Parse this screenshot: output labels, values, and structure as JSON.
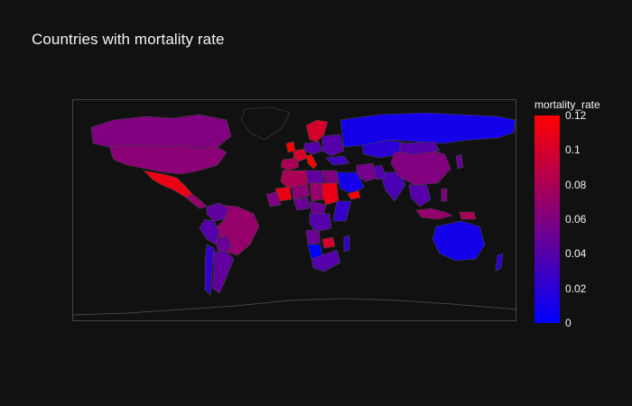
{
  "title": "Countries with mortality rate",
  "colorbar": {
    "title": "mortality_rate",
    "min": 0,
    "max": 0.12,
    "ticks": [
      {
        "label": "0.12",
        "value": 0.12
      },
      {
        "label": "0.1",
        "value": 0.1
      },
      {
        "label": "0.08",
        "value": 0.08
      },
      {
        "label": "0.06",
        "value": 0.06
      },
      {
        "label": "0.04",
        "value": 0.04
      },
      {
        "label": "0.02",
        "value": 0.02
      },
      {
        "label": "0",
        "value": 0
      }
    ],
    "colors": {
      "low": "#0000ff",
      "high": "#ff0000"
    }
  },
  "map": {
    "projection": "equirectangular",
    "background": "#111111",
    "frame_color": "#444444",
    "regions": [
      {
        "name": "Canada",
        "value": 0.06
      },
      {
        "name": "USA",
        "value": 0.065
      },
      {
        "name": "Mexico",
        "value": 0.11
      },
      {
        "name": "Central America",
        "value": 0.07
      },
      {
        "name": "Greenland",
        "value": null
      },
      {
        "name": "Brazil",
        "value": 0.07
      },
      {
        "name": "Colombia",
        "value": 0.045
      },
      {
        "name": "Peru",
        "value": 0.04
      },
      {
        "name": "Bolivia",
        "value": 0.05
      },
      {
        "name": "Argentina",
        "value": 0.045
      },
      {
        "name": "Chile",
        "value": 0.025
      },
      {
        "name": "UK",
        "value": 0.12
      },
      {
        "name": "France",
        "value": 0.1
      },
      {
        "name": "Iberia",
        "value": 0.08
      },
      {
        "name": "Italy",
        "value": 0.12
      },
      {
        "name": "Scandinavia",
        "value": 0.1
      },
      {
        "name": "Germany/Central Europe",
        "value": 0.04
      },
      {
        "name": "Eastern Europe",
        "value": 0.04
      },
      {
        "name": "Russia",
        "value": 0.01
      },
      {
        "name": "Kazakhstan",
        "value": 0.02
      },
      {
        "name": "Turkey",
        "value": 0.03
      },
      {
        "name": "Iran",
        "value": 0.055
      },
      {
        "name": "Saudi Arabia",
        "value": 0.01
      },
      {
        "name": "Yemen",
        "value": 0.12
      },
      {
        "name": "Egypt",
        "value": 0.06
      },
      {
        "name": "Libya",
        "value": 0.045
      },
      {
        "name": "Algeria",
        "value": 0.08
      },
      {
        "name": "Mali",
        "value": 0.11
      },
      {
        "name": "Niger",
        "value": 0.065
      },
      {
        "name": "Chad",
        "value": 0.07
      },
      {
        "name": "Sudan",
        "value": 0.11
      },
      {
        "name": "West Africa",
        "value": 0.06
      },
      {
        "name": "Nigeria",
        "value": 0.05
      },
      {
        "name": "Central Africa",
        "value": 0.05
      },
      {
        "name": "DR Congo",
        "value": 0.04
      },
      {
        "name": "East Africa",
        "value": 0.025
      },
      {
        "name": "Angola",
        "value": 0.05
      },
      {
        "name": "Namibia",
        "value": 0.0
      },
      {
        "name": "Southern Africa",
        "value": 0.04
      },
      {
        "name": "Zimbabwe",
        "value": 0.1
      },
      {
        "name": "Madagascar",
        "value": 0.025
      },
      {
        "name": "India",
        "value": 0.035
      },
      {
        "name": "Pakistan",
        "value": 0.04
      },
      {
        "name": "China",
        "value": 0.06
      },
      {
        "name": "Mongolia",
        "value": 0.04
      },
      {
        "name": "Southeast Asia",
        "value": 0.04
      },
      {
        "name": "Indonesia",
        "value": 0.07
      },
      {
        "name": "Philippines",
        "value": 0.06
      },
      {
        "name": "Japan",
        "value": 0.05
      },
      {
        "name": "Papua New Guinea",
        "value": 0.08
      },
      {
        "name": "Australia",
        "value": 0.01
      },
      {
        "name": "New Zealand",
        "value": 0.02
      }
    ]
  }
}
